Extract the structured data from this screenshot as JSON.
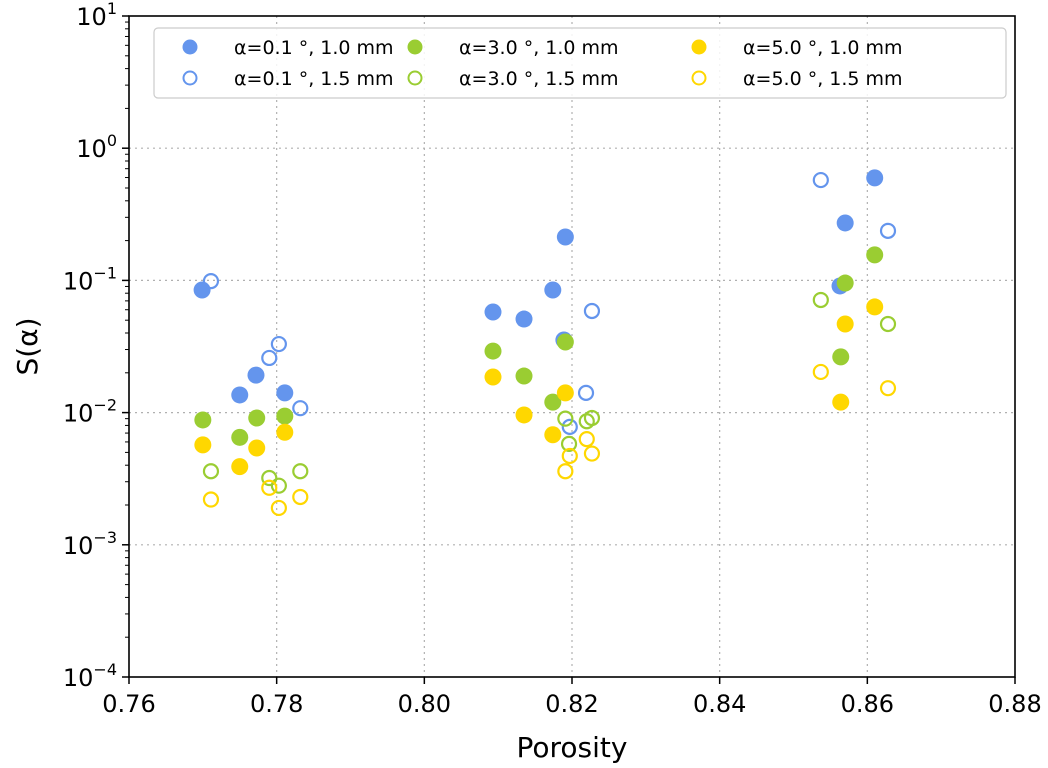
{
  "chart_data": {
    "type": "scatter",
    "title": "",
    "xlabel": "Porosity",
    "ylabel": "S(α)",
    "xlim": [
      0.76,
      0.88
    ],
    "ylim": [
      0.0001,
      10
    ],
    "yscale": "log",
    "grid": true,
    "legend_position": "top",
    "x_ticks": [
      "0.76",
      "0.78",
      "0.80",
      "0.82",
      "0.84",
      "0.86",
      "0.88"
    ],
    "x_tick_values": [
      0.76,
      0.78,
      0.8,
      0.82,
      0.84,
      0.86,
      0.88
    ],
    "y_ticks": [
      {
        "base": "10",
        "exp": "1",
        "value": 10
      },
      {
        "base": "10",
        "exp": "0",
        "value": 1
      },
      {
        "base": "10",
        "exp": "−1",
        "value": 0.1
      },
      {
        "base": "10",
        "exp": "−2",
        "value": 0.01
      },
      {
        "base": "10",
        "exp": "−3",
        "value": 0.001
      },
      {
        "base": "10",
        "exp": "−4",
        "value": 0.0001
      }
    ],
    "series": [
      {
        "name": "α=0.1 °, 1.0 mm",
        "color": "#6495ED",
        "filled": true,
        "points": [
          [
            0.7699,
            0.0846
          ],
          [
            0.7772,
            0.0192
          ],
          [
            0.775,
            0.0136
          ],
          [
            0.7811,
            0.0141
          ],
          [
            0.8093,
            0.0577
          ],
          [
            0.8135,
            0.051
          ],
          [
            0.8174,
            0.0846
          ],
          [
            0.8191,
            0.213
          ],
          [
            0.8189,
            0.0354
          ],
          [
            0.861,
            0.596
          ],
          [
            0.857,
            0.272
          ],
          [
            0.8563,
            0.0908
          ]
        ]
      },
      {
        "name": "α=0.1 °, 1.5 mm",
        "color": "#6495ED",
        "filled": false,
        "points": [
          [
            0.7711,
            0.0988
          ],
          [
            0.7803,
            0.033
          ],
          [
            0.779,
            0.0259
          ],
          [
            0.7832,
            0.0108
          ],
          [
            0.8227,
            0.0587
          ],
          [
            0.8219,
            0.0141
          ],
          [
            0.8197,
            0.0078
          ],
          [
            0.8189,
            0.0354
          ],
          [
            0.8537,
            0.574
          ],
          [
            0.8628,
            0.237
          ]
        ]
      },
      {
        "name": "α=3.0 °, 1.0 mm",
        "color": "#9ACD32",
        "filled": true,
        "points": [
          [
            0.77,
            0.0088
          ],
          [
            0.7773,
            0.0091
          ],
          [
            0.775,
            0.0065
          ],
          [
            0.7811,
            0.0094
          ],
          [
            0.8093,
            0.0292
          ],
          [
            0.8135,
            0.0189
          ],
          [
            0.8191,
            0.0342
          ],
          [
            0.8174,
            0.012
          ],
          [
            0.861,
            0.156
          ],
          [
            0.857,
            0.0955
          ],
          [
            0.8564,
            0.0264
          ]
        ]
      },
      {
        "name": "α=3.0 °, 1.5 mm",
        "color": "#9ACD32",
        "filled": false,
        "points": [
          [
            0.7711,
            0.0036
          ],
          [
            0.779,
            0.0032
          ],
          [
            0.7803,
            0.0028
          ],
          [
            0.7832,
            0.0036
          ],
          [
            0.8191,
            0.009
          ],
          [
            0.8196,
            0.0058
          ],
          [
            0.822,
            0.0086
          ],
          [
            0.8227,
            0.0091
          ],
          [
            0.8537,
            0.0711
          ],
          [
            0.8628,
            0.0468
          ]
        ]
      },
      {
        "name": "α=5.0 °, 1.0 mm",
        "color": "#FFD700",
        "filled": true,
        "points": [
          [
            0.77,
            0.0057
          ],
          [
            0.7811,
            0.0071
          ],
          [
            0.7773,
            0.0054
          ],
          [
            0.775,
            0.0039
          ],
          [
            0.8093,
            0.0186
          ],
          [
            0.8135,
            0.0096
          ],
          [
            0.8191,
            0.0141
          ],
          [
            0.8174,
            0.0068
          ],
          [
            0.861,
            0.063
          ],
          [
            0.857,
            0.0468
          ],
          [
            0.8564,
            0.012
          ]
        ]
      },
      {
        "name": "α=5.0 °, 1.5 mm",
        "color": "#FFD700",
        "filled": false,
        "points": [
          [
            0.7711,
            0.0022
          ],
          [
            0.779,
            0.0027
          ],
          [
            0.7803,
            0.0019
          ],
          [
            0.7832,
            0.0023
          ],
          [
            0.8197,
            0.0047
          ],
          [
            0.822,
            0.0063
          ],
          [
            0.8227,
            0.0049
          ],
          [
            0.8191,
            0.0036
          ],
          [
            0.8537,
            0.0203
          ],
          [
            0.8628,
            0.0153
          ]
        ]
      }
    ]
  }
}
